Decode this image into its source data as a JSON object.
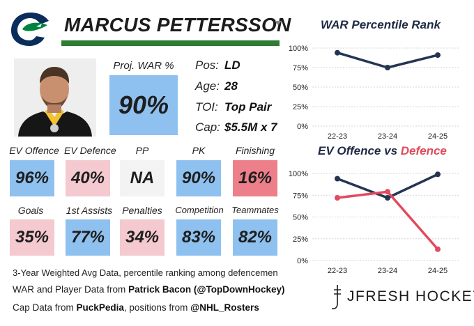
{
  "player": {
    "name": "MARCUS PETTERSSON",
    "team_logo": "canucks-orca-logo"
  },
  "proj_war": {
    "label": "Proj. WAR %",
    "value": "90%"
  },
  "info": [
    {
      "key": "Pos:",
      "value": "LD"
    },
    {
      "key": "Age:",
      "value": "28"
    },
    {
      "key": "TOI:",
      "value": "Top Pair"
    },
    {
      "key": "Cap:",
      "value": "$5.5M x 7"
    }
  ],
  "stats_row1": [
    {
      "label": "EV Offence",
      "value": "96%",
      "tone": "blue"
    },
    {
      "label": "EV Defence",
      "value": "40%",
      "tone": "pink"
    },
    {
      "label": "PP",
      "value": "NA",
      "tone": "grey"
    },
    {
      "label": "PK",
      "value": "90%",
      "tone": "blue"
    },
    {
      "label": "Finishing",
      "value": "16%",
      "tone": "red"
    }
  ],
  "stats_row2": [
    {
      "label": "Goals",
      "value": "35%",
      "tone": "pink"
    },
    {
      "label": "1st Assists",
      "value": "77%",
      "tone": "blue"
    },
    {
      "label": "Penalties",
      "value": "34%",
      "tone": "pink"
    },
    {
      "label": "Competition",
      "value": "83%",
      "tone": "blue"
    },
    {
      "label": "Teammates",
      "value": "82%",
      "tone": "blue"
    }
  ],
  "footer": {
    "note": "3-Year Weighted Avg Data, percentile ranking among defencemen",
    "credit1_prefix": "WAR and Player Data from ",
    "credit1_bold": "Patrick Bacon (@TopDownHockey)",
    "credit2_prefix": "Cap Data from ",
    "credit2_bold1": "PuckPedia",
    "credit2_mid": ", positions from ",
    "credit2_bold2": "@NHL_Rosters",
    "brand": "JFRESH HOCKEY"
  },
  "colors": {
    "blue_tile": "#8ec1ef",
    "pink_tile": "#f4c9cf",
    "red_tile": "#ec7f8a",
    "grey_tile": "#f3f3f3",
    "navy_line": "#253551",
    "red_line": "#e24a5e",
    "green_bar": "#2e7d32"
  },
  "chart_data": [
    {
      "type": "line",
      "title": "WAR Percentile Rank",
      "categories": [
        "22-23",
        "23-24",
        "24-25"
      ],
      "series": [
        {
          "name": "WAR",
          "values": [
            94,
            75,
            91
          ],
          "color": "#253551"
        }
      ],
      "yticks": [
        "100%",
        "75%",
        "50%",
        "25%",
        "0%"
      ],
      "ylim": [
        0,
        100
      ],
      "grid": true
    },
    {
      "type": "line",
      "title_parts": [
        "EV Offence",
        " vs ",
        "Defence"
      ],
      "categories": [
        "22-23",
        "23-24",
        "24-25"
      ],
      "series": [
        {
          "name": "EV Offence",
          "values": [
            94,
            72,
            99
          ],
          "color": "#253551"
        },
        {
          "name": "EV Defence",
          "values": [
            72,
            79,
            13
          ],
          "color": "#e24a5e"
        }
      ],
      "yticks": [
        "100%",
        "75%",
        "50%",
        "25%",
        "0%"
      ],
      "ylim": [
        0,
        100
      ],
      "grid": true
    }
  ]
}
